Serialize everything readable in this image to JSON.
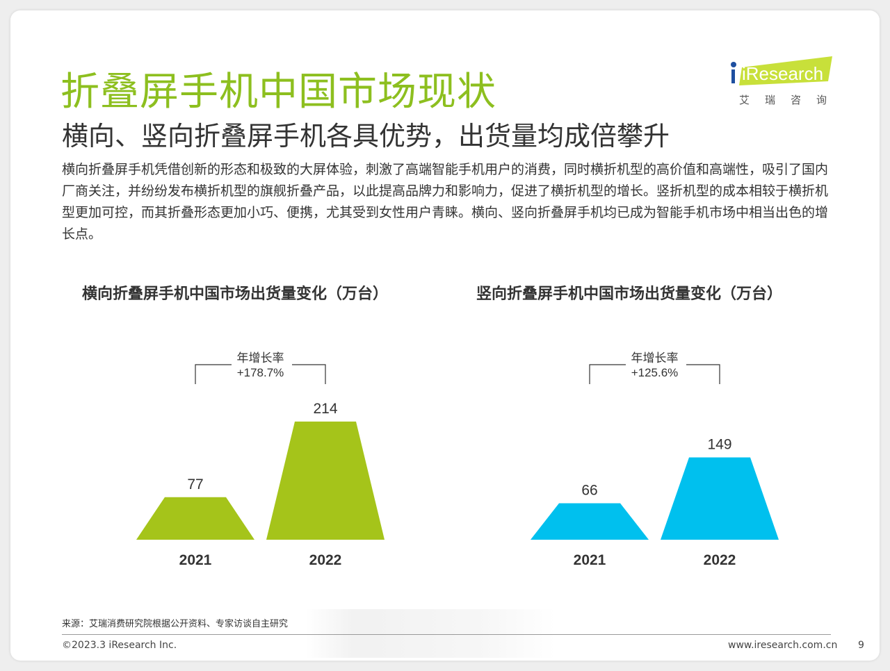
{
  "page": {
    "title": "折叠屏手机中国市场现状",
    "subtitle": "横向、竖向折叠屏手机各具优势，出货量均成倍攀升",
    "body": "横向折叠屏手机凭借创新的形态和极致的大屏体验，刺激了高端智能手机用户的消费，同时横折机型的高价值和高端性，吸引了国内厂商关注，并纷纷发布横折机型的旗舰折叠产品，以此提高品牌力和影响力，促进了横折机型的增长。竖折机型的成本相较于横折机型更加可控，而其折叠形态更加小巧、便携，尤其受到女性用户青睐。横向、竖向折叠屏手机均已成为智能手机市场中相当出色的增长点。",
    "logo_text": "iResearch",
    "logo_sub": "艾瑞咨询",
    "source": "来源：艾瑞消费研究院根据公开资料、专家访谈自主研究",
    "copyright": "©2023.3 iResearch Inc.",
    "website": "www.iresearch.com.cn",
    "page_number": "9"
  },
  "colors": {
    "title_green": "#8dbf1f",
    "bar_green": "#a5c41a",
    "bar_blue": "#00c0ee"
  },
  "chart_data": [
    {
      "type": "bar",
      "title": "横向折叠屏手机中国市场出货量变化（万台）",
      "categories": [
        "2021",
        "2022"
      ],
      "values": [
        77,
        214
      ],
      "growth_label": "年增长率",
      "growth_value": "+178.7%",
      "color": "#a5c41a"
    },
    {
      "type": "bar",
      "title": "竖向折叠屏手机中国市场出货量变化（万台）",
      "categories": [
        "2021",
        "2022"
      ],
      "values": [
        66,
        149
      ],
      "growth_label": "年增长率",
      "growth_value": "+125.6%",
      "color": "#00c0ee"
    }
  ]
}
